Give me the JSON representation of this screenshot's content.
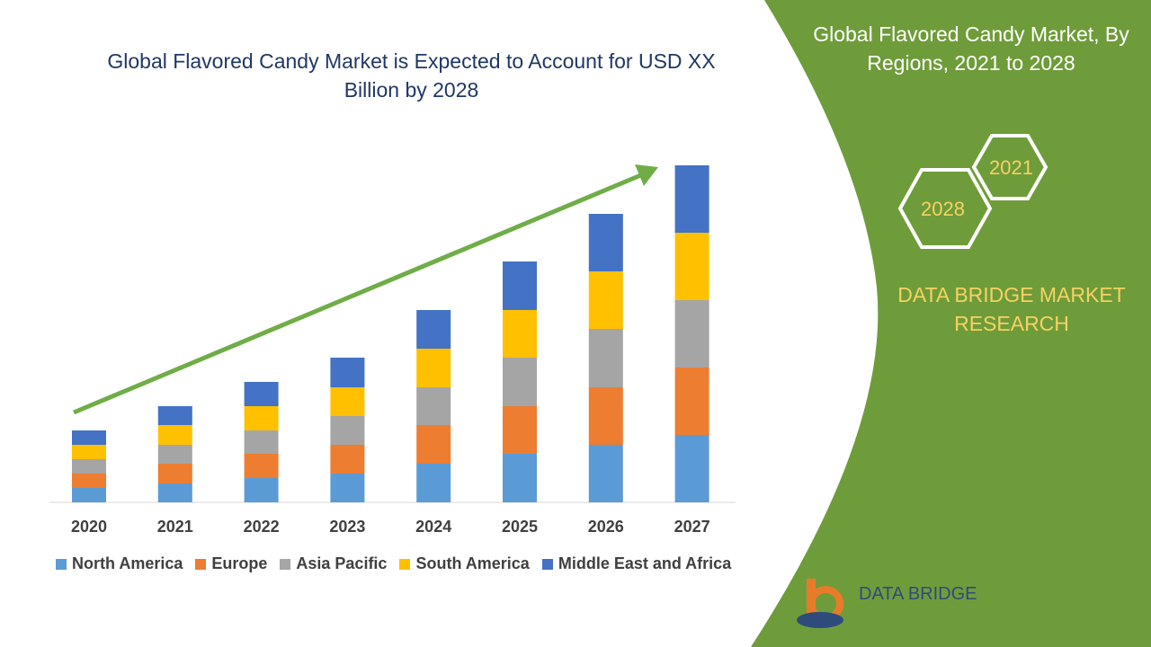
{
  "title": "Global Flavored Candy Market is Expected to Account for USD XX Billion by 2028",
  "side_panel": {
    "title": "Global Flavored Candy Market, By Regions, 2021 to 2028",
    "hex_years": [
      "2021",
      "2028"
    ],
    "brand": "DATA BRIDGE MARKET RESEARCH",
    "logo_text": "DATA BRIDGE",
    "panel_color": "#6f9c3a"
  },
  "chart_data": {
    "type": "bar",
    "stacked": true,
    "title": "Global Flavored Candy Market is Expected to Account for USD XX Billion by 2028",
    "categories": [
      "2020",
      "2021",
      "2022",
      "2023",
      "2024",
      "2025",
      "2026",
      "2027"
    ],
    "series": [
      {
        "name": "North America",
        "color": "#5b9bd5",
        "values": [
          16,
          21,
          27,
          32,
          43,
          54,
          64,
          75
        ]
      },
      {
        "name": "Europe",
        "color": "#ed7d31",
        "values": [
          16,
          22,
          27,
          32,
          43,
          53,
          64,
          75
        ]
      },
      {
        "name": "Asia Pacific",
        "color": "#a5a5a5",
        "values": [
          16,
          21,
          26,
          32,
          42,
          54,
          65,
          75
        ]
      },
      {
        "name": "South America",
        "color": "#ffc000",
        "values": [
          16,
          22,
          27,
          32,
          43,
          53,
          64,
          75
        ]
      },
      {
        "name": "Middle East and Africa",
        "color": "#4472c4",
        "values": [
          16,
          21,
          27,
          33,
          43,
          54,
          64,
          75
        ]
      }
    ],
    "trend_arrow_color": "#70ad47",
    "legend": "bottom",
    "grid": false,
    "yaxis_shown": false
  }
}
